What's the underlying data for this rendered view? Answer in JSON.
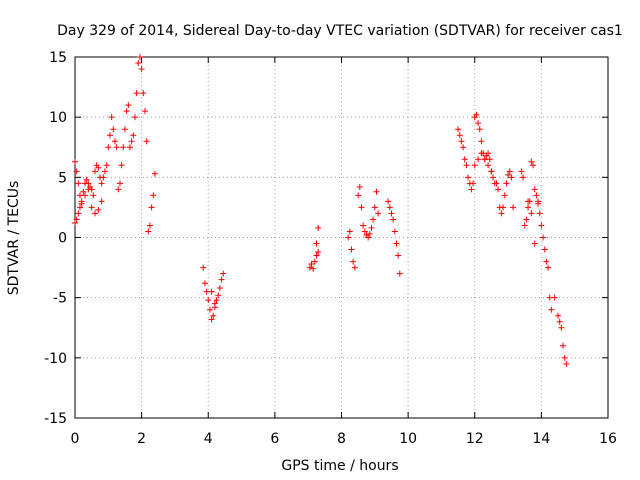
{
  "chart_data": {
    "type": "scatter",
    "title": "Day 329 of 2014, Sidereal Day-to-day VTEC variation (SDTVAR) for receiver cas1",
    "xlabel": "GPS time / hours",
    "ylabel": "SDTVAR / TECUs",
    "xlim": [
      0,
      16
    ],
    "ylim": [
      -15,
      15
    ],
    "xticks": [
      0,
      2,
      4,
      6,
      8,
      10,
      12,
      14,
      16
    ],
    "yticks": [
      -15,
      -10,
      -5,
      0,
      5,
      10,
      15
    ],
    "grid": true,
    "marker": "+",
    "color": "#ff0000",
    "series": [
      {
        "name": "SDTVAR",
        "x": [
          0.0,
          0.05,
          0.1,
          0.15,
          0.2,
          0.25,
          0.3,
          0.35,
          0.4,
          0.45,
          0.5,
          0.55,
          0.6,
          0.65,
          0.7,
          0.75,
          0.8,
          0.85,
          0.9,
          0.95,
          1.0,
          1.05,
          1.1,
          1.15,
          1.2,
          1.25,
          1.3,
          1.35,
          1.4,
          1.45,
          1.5,
          1.55,
          1.6,
          1.65,
          1.7,
          1.75,
          1.8,
          1.85,
          1.9,
          1.95,
          2.0,
          2.05,
          2.1,
          2.15,
          2.2,
          2.25,
          2.3,
          2.35,
          2.4,
          0.0,
          0.05,
          0.1,
          0.15,
          0.2,
          0.3,
          0.4,
          0.5,
          0.6,
          0.7,
          0.8,
          3.85,
          3.9,
          3.95,
          4.0,
          4.05,
          4.1,
          4.15,
          4.2,
          4.25,
          4.3,
          4.35,
          4.4,
          4.45,
          4.1,
          4.2,
          7.05,
          7.1,
          7.15,
          7.2,
          7.25,
          7.3,
          7.25,
          7.3,
          8.2,
          8.25,
          8.3,
          8.35,
          8.4,
          8.5,
          8.55,
          8.6,
          8.65,
          8.7,
          8.75,
          8.8,
          8.85,
          8.9,
          8.95,
          9.0,
          9.05,
          9.1,
          9.4,
          9.45,
          9.5,
          9.55,
          9.6,
          9.65,
          9.7,
          9.75,
          11.5,
          11.55,
          11.6,
          11.65,
          11.7,
          11.75,
          11.8,
          11.85,
          11.9,
          11.95,
          12.0,
          12.05,
          12.1,
          12.15,
          12.2,
          12.25,
          12.3,
          12.35,
          12.4,
          12.45,
          12.5,
          12.55,
          12.6,
          12.65,
          12.7,
          12.75,
          12.8,
          12.85,
          12.9,
          12.95,
          13.0,
          13.05,
          13.1,
          13.15,
          12.0,
          12.1,
          12.2,
          12.3,
          12.4,
          12.5,
          13.4,
          13.45,
          13.5,
          13.55,
          13.6,
          13.65,
          13.7,
          13.75,
          13.8,
          13.85,
          13.9,
          13.95,
          14.0,
          14.05,
          14.1,
          14.15,
          14.2,
          14.25,
          14.3,
          14.4,
          14.5,
          14.55,
          14.6,
          14.65,
          14.7,
          14.75,
          13.6,
          13.7,
          13.8,
          13.9
        ],
        "y": [
          6.3,
          5.5,
          4.5,
          3.5,
          3.0,
          3.8,
          4.5,
          4.8,
          4.5,
          4.2,
          4.0,
          3.5,
          5.5,
          6.0,
          5.8,
          5.0,
          4.5,
          5.0,
          5.5,
          6.0,
          7.5,
          8.5,
          10.0,
          9.0,
          8.0,
          7.5,
          4.0,
          4.5,
          6.0,
          7.5,
          9.0,
          10.5,
          11.0,
          7.5,
          8.0,
          8.5,
          10.0,
          12.0,
          14.5,
          15.0,
          14.0,
          12.0,
          10.5,
          8.0,
          0.5,
          1.0,
          2.5,
          3.5,
          5.3,
          1.2,
          1.5,
          2.0,
          2.5,
          2.8,
          3.5,
          4.0,
          2.5,
          2.0,
          2.3,
          3.0,
          -2.5,
          -3.8,
          -4.5,
          -5.2,
          -6.0,
          -6.8,
          -6.5,
          -5.8,
          -5.2,
          -4.8,
          -4.2,
          -3.5,
          -3.0,
          -4.5,
          -5.5,
          -2.5,
          -2.2,
          -2.6,
          -2.0,
          -1.5,
          0.8,
          -0.5,
          -1.2,
          0.0,
          0.5,
          -1.0,
          -2.0,
          -2.5,
          3.5,
          4.2,
          2.5,
          1.0,
          0.5,
          0.2,
          0.0,
          0.3,
          0.8,
          1.5,
          2.5,
          3.8,
          2.0,
          3.0,
          2.5,
          2.0,
          1.5,
          0.5,
          -0.5,
          -1.5,
          -3.0,
          9.0,
          8.5,
          8.0,
          7.5,
          6.5,
          6.0,
          5.0,
          4.5,
          4.0,
          4.5,
          10.0,
          10.2,
          9.5,
          9.0,
          8.0,
          7.0,
          6.5,
          6.8,
          7.0,
          6.5,
          5.5,
          5.0,
          4.5,
          4.5,
          4.0,
          2.5,
          2.0,
          2.5,
          3.5,
          4.5,
          5.2,
          5.5,
          5.0,
          2.5,
          6.0,
          6.5,
          7.0,
          6.5,
          6.0,
          5.5,
          5.5,
          5.0,
          1.0,
          1.5,
          2.5,
          3.0,
          6.3,
          6.0,
          4.0,
          3.5,
          3.0,
          2.0,
          1.0,
          0.0,
          -1.0,
          -2.0,
          -2.5,
          -5.0,
          -6.0,
          -5.0,
          -6.5,
          -7.0,
          -7.5,
          -9.0,
          -10.0,
          -10.5,
          3.0,
          2.0,
          -0.5,
          2.8
        ]
      }
    ]
  }
}
